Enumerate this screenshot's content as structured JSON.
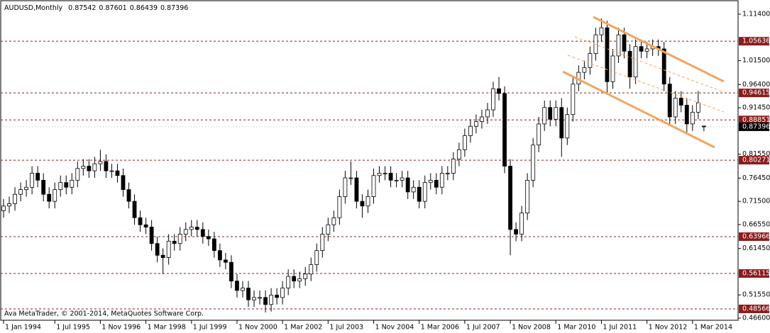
{
  "chart_data": {
    "type": "candlestick",
    "title": "AUDUSD,Monthly",
    "copyright": "Ava MetaTrader, © 2001-2014, MetaQuotes Software Corp.",
    "x": [
      "1994-01",
      "1994-03",
      "1994-05",
      "1994-07",
      "1994-09",
      "1994-11",
      "1995-01",
      "1995-03",
      "1995-05",
      "1995-07",
      "1995-09",
      "1995-11",
      "1996-01",
      "1996-03",
      "1996-05",
      "1996-07",
      "1996-09",
      "1996-11",
      "1997-01",
      "1997-03",
      "1997-05",
      "1997-07",
      "1997-09",
      "1997-11",
      "1998-01",
      "1998-03",
      "1998-05",
      "1998-07",
      "1998-09",
      "1998-11",
      "1999-01",
      "1999-03",
      "1999-05",
      "1999-07",
      "1999-09",
      "1999-11",
      "2000-01",
      "2000-03",
      "2000-05",
      "2000-07",
      "2000-09",
      "2000-11",
      "2001-01",
      "2001-03",
      "2001-05",
      "2001-07",
      "2001-09",
      "2001-11",
      "2002-01",
      "2002-03",
      "2002-05",
      "2002-07",
      "2002-09",
      "2002-11",
      "2003-01",
      "2003-03",
      "2003-05",
      "2003-07",
      "2003-09",
      "2003-11",
      "2004-01",
      "2004-03",
      "2004-05",
      "2004-07",
      "2004-09",
      "2004-11",
      "2005-01",
      "2005-03",
      "2005-05",
      "2005-07",
      "2005-09",
      "2005-11",
      "2006-01",
      "2006-03",
      "2006-05",
      "2006-07",
      "2006-09",
      "2006-11",
      "2007-01",
      "2007-03",
      "2007-05",
      "2007-07",
      "2007-09",
      "2007-11",
      "2008-01",
      "2008-03",
      "2008-05",
      "2008-07",
      "2008-09",
      "2008-11",
      "2009-01",
      "2009-03",
      "2009-05",
      "2009-07",
      "2009-09",
      "2009-11",
      "2010-01",
      "2010-03",
      "2010-05",
      "2010-07",
      "2010-09",
      "2010-11",
      "2011-01",
      "2011-03",
      "2011-05",
      "2011-07",
      "2011-09",
      "2011-11",
      "2012-01",
      "2012-03",
      "2012-05",
      "2012-07",
      "2012-09",
      "2012-11",
      "2013-01",
      "2013-03",
      "2013-05",
      "2013-07",
      "2013-09",
      "2013-11",
      "2014-01",
      "2014-03",
      "2014-05",
      "2014-07"
    ],
    "open": [
      0.695,
      0.705,
      0.71,
      0.73,
      0.74,
      0.745,
      0.775,
      0.76,
      0.73,
      0.715,
      0.74,
      0.755,
      0.745,
      0.76,
      0.785,
      0.79,
      0.78,
      0.795,
      0.8,
      0.78,
      0.78,
      0.77,
      0.74,
      0.715,
      0.68,
      0.665,
      0.66,
      0.625,
      0.6,
      0.595,
      0.63,
      0.625,
      0.645,
      0.655,
      0.66,
      0.655,
      0.64,
      0.635,
      0.61,
      0.59,
      0.585,
      0.545,
      0.525,
      0.53,
      0.505,
      0.51,
      0.51,
      0.495,
      0.515,
      0.51,
      0.53,
      0.555,
      0.545,
      0.55,
      0.56,
      0.58,
      0.61,
      0.645,
      0.665,
      0.68,
      0.725,
      0.765,
      0.765,
      0.715,
      0.705,
      0.725,
      0.77,
      0.775,
      0.775,
      0.76,
      0.76,
      0.765,
      0.735,
      0.745,
      0.715,
      0.755,
      0.76,
      0.745,
      0.775,
      0.775,
      0.805,
      0.825,
      0.855,
      0.875,
      0.885,
      0.895,
      0.91,
      0.955,
      0.945,
      0.79,
      0.655,
      0.645,
      0.69,
      0.76,
      0.835,
      0.88,
      0.915,
      0.89,
      0.915,
      0.85,
      0.9,
      0.965,
      0.99,
      1.0,
      1.03,
      1.07,
      1.085,
      0.97,
      1.025,
      1.07,
      1.035,
      0.98,
      1.045,
      1.035,
      1.04,
      1.045,
      1.04,
      0.965,
      0.895,
      0.935,
      0.92,
      0.88,
      0.905,
      0.87542
    ],
    "high": [
      0.72,
      0.725,
      0.745,
      0.755,
      0.76,
      0.79,
      0.79,
      0.775,
      0.745,
      0.755,
      0.77,
      0.77,
      0.775,
      0.8,
      0.805,
      0.805,
      0.81,
      0.825,
      0.815,
      0.795,
      0.795,
      0.785,
      0.755,
      0.73,
      0.695,
      0.68,
      0.675,
      0.64,
      0.615,
      0.645,
      0.645,
      0.66,
      0.67,
      0.675,
      0.675,
      0.67,
      0.655,
      0.65,
      0.625,
      0.605,
      0.6,
      0.56,
      0.545,
      0.545,
      0.525,
      0.525,
      0.525,
      0.53,
      0.53,
      0.545,
      0.57,
      0.57,
      0.565,
      0.575,
      0.595,
      0.625,
      0.66,
      0.68,
      0.695,
      0.74,
      0.78,
      0.8,
      0.78,
      0.73,
      0.74,
      0.785,
      0.79,
      0.79,
      0.79,
      0.775,
      0.78,
      0.78,
      0.76,
      0.76,
      0.77,
      0.775,
      0.775,
      0.79,
      0.79,
      0.82,
      0.84,
      0.87,
      0.89,
      0.9,
      0.91,
      0.925,
      0.97,
      0.98,
      0.96,
      0.805,
      0.67,
      0.705,
      0.775,
      0.85,
      0.895,
      0.93,
      0.93,
      0.93,
      0.935,
      0.915,
      0.98,
      1.005,
      1.015,
      1.045,
      1.085,
      1.105,
      1.1,
      1.04,
      1.085,
      1.085,
      1.05,
      1.06,
      1.06,
      1.055,
      1.06,
      1.06,
      1.055,
      0.98,
      0.95,
      0.95,
      0.935,
      0.92,
      0.95,
      0.87601
    ],
    "low": [
      0.68,
      0.69,
      0.695,
      0.715,
      0.725,
      0.73,
      0.745,
      0.715,
      0.7,
      0.7,
      0.725,
      0.73,
      0.73,
      0.745,
      0.77,
      0.765,
      0.765,
      0.78,
      0.765,
      0.765,
      0.755,
      0.725,
      0.7,
      0.665,
      0.65,
      0.645,
      0.61,
      0.585,
      0.56,
      0.58,
      0.61,
      0.61,
      0.63,
      0.64,
      0.64,
      0.625,
      0.62,
      0.595,
      0.575,
      0.57,
      0.53,
      0.51,
      0.51,
      0.49,
      0.49,
      0.495,
      0.478,
      0.48,
      0.495,
      0.495,
      0.515,
      0.53,
      0.53,
      0.535,
      0.545,
      0.565,
      0.595,
      0.63,
      0.65,
      0.665,
      0.71,
      0.75,
      0.7,
      0.68,
      0.69,
      0.71,
      0.755,
      0.76,
      0.745,
      0.745,
      0.745,
      0.72,
      0.72,
      0.7,
      0.7,
      0.74,
      0.73,
      0.73,
      0.76,
      0.76,
      0.79,
      0.81,
      0.84,
      0.86,
      0.87,
      0.88,
      0.895,
      0.93,
      0.775,
      0.6,
      0.63,
      0.63,
      0.675,
      0.745,
      0.82,
      0.865,
      0.875,
      0.875,
      0.81,
      0.835,
      0.885,
      0.95,
      0.975,
      0.985,
      1.015,
      1.055,
      0.945,
      0.955,
      1.01,
      1.02,
      0.955,
      0.965,
      1.02,
      1.02,
      1.025,
      1.025,
      0.95,
      0.88,
      0.88,
      0.905,
      0.86,
      0.865,
      0.89,
      0.86439
    ],
    "close": [
      0.705,
      0.71,
      0.73,
      0.74,
      0.745,
      0.775,
      0.76,
      0.73,
      0.715,
      0.74,
      0.755,
      0.745,
      0.76,
      0.785,
      0.79,
      0.78,
      0.795,
      0.8,
      0.78,
      0.78,
      0.77,
      0.74,
      0.715,
      0.68,
      0.665,
      0.66,
      0.625,
      0.6,
      0.595,
      0.63,
      0.625,
      0.645,
      0.655,
      0.66,
      0.655,
      0.64,
      0.635,
      0.61,
      0.59,
      0.585,
      0.545,
      0.525,
      0.53,
      0.505,
      0.51,
      0.51,
      0.495,
      0.515,
      0.51,
      0.53,
      0.555,
      0.545,
      0.55,
      0.56,
      0.58,
      0.61,
      0.645,
      0.665,
      0.68,
      0.725,
      0.765,
      0.765,
      0.715,
      0.705,
      0.725,
      0.77,
      0.775,
      0.775,
      0.76,
      0.76,
      0.765,
      0.735,
      0.745,
      0.715,
      0.755,
      0.76,
      0.745,
      0.775,
      0.775,
      0.805,
      0.825,
      0.855,
      0.875,
      0.885,
      0.895,
      0.91,
      0.955,
      0.945,
      0.79,
      0.655,
      0.645,
      0.69,
      0.76,
      0.835,
      0.88,
      0.915,
      0.89,
      0.915,
      0.85,
      0.9,
      0.965,
      0.99,
      1.0,
      1.03,
      1.07,
      1.085,
      0.97,
      1.025,
      1.07,
      1.035,
      0.98,
      1.045,
      1.035,
      1.04,
      1.045,
      1.04,
      0.965,
      0.895,
      0.935,
      0.92,
      0.88,
      0.905,
      0.925,
      0.87396
    ],
    "xlim": [
      "1993-12",
      "2015-07"
    ],
    "ylim": [
      0.466,
      1.114
    ],
    "yticks": [
      {
        "value": 1.114,
        "label": "1.11400"
      },
      {
        "value": 1.015,
        "label": "1.01500"
      },
      {
        "value": 0.964,
        "label": "0.96400"
      },
      {
        "value": 0.9145,
        "label": "0.91450"
      },
      {
        "value": 0.8155,
        "label": "0.81550"
      },
      {
        "value": 0.7645,
        "label": "0.76450"
      },
      {
        "value": 0.715,
        "label": "0.71500"
      },
      {
        "value": 0.6655,
        "label": "0.66550"
      },
      {
        "value": 0.6145,
        "label": "0.61450"
      },
      {
        "value": 0.5155,
        "label": "0.51550"
      },
      {
        "value": 0.466,
        "label": "0.46600"
      }
    ],
    "xticks": [
      {
        "value": "1994-01",
        "label": "1 Jan 1994"
      },
      {
        "value": "1995-07",
        "label": "1 Jul 1995"
      },
      {
        "value": "1996-11",
        "label": "1 Nov 1996"
      },
      {
        "value": "1998-03",
        "label": "1 Mar 1998"
      },
      {
        "value": "1999-07",
        "label": "1 Jul 1999"
      },
      {
        "value": "2000-11",
        "label": "1 Nov 2000"
      },
      {
        "value": "2002-03",
        "label": "1 Mar 2002"
      },
      {
        "value": "2003-07",
        "label": "1 Jul 2003"
      },
      {
        "value": "2004-11",
        "label": "1 Nov 2004"
      },
      {
        "value": "2006-03",
        "label": "1 Mar 2006"
      },
      {
        "value": "2007-07",
        "label": "1 Jul 2007"
      },
      {
        "value": "2008-11",
        "label": "1 Nov 2008"
      },
      {
        "value": "2010-03",
        "label": "1 Mar 2010"
      },
      {
        "value": "2011-07",
        "label": "1 Jul 2011"
      },
      {
        "value": "2012-11",
        "label": "1 Nov 2012"
      },
      {
        "value": "2014-03",
        "label": "1 Mar 2014"
      }
    ],
    "levels": [
      1.05636,
      0.94615,
      0.88851,
      0.80271,
      0.63966,
      0.56115,
      0.48566
    ],
    "level_color": "#8b1c1c",
    "up_color": "#ffffff",
    "down_color": "#000000"
  }
}
